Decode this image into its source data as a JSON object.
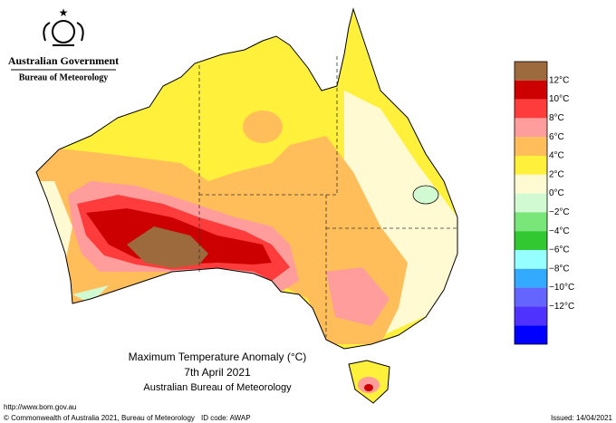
{
  "header": {
    "title": "Australian Government",
    "subtitle": "Bureau of Meteorology"
  },
  "map": {
    "title": "Maximum Temperature Anomaly (°C)",
    "date": "7th April 2021",
    "source": "Australian Bureau of Meteorology"
  },
  "legend": {
    "colors": [
      "#9c6a3c",
      "#cc0000",
      "#ff3c3c",
      "#ff9c9c",
      "#ffbe5a",
      "#fff03c",
      "#fffad2",
      "#d2fad2",
      "#78e678",
      "#32c832",
      "#96ffff",
      "#32aaff",
      "#6464ff",
      "#5032ff",
      "#0000ff"
    ],
    "labels": [
      "12°C",
      "10°C",
      "8°C",
      "6°C",
      "4°C",
      "2°C",
      "0°C",
      "−2°C",
      "−4°C",
      "−6°C",
      "−8°C",
      "−10°C",
      "−12°C"
    ]
  },
  "footer": {
    "url": "http://www.bom.gov.au",
    "copyright": "© Commonwealth of Australia 2021, Bureau of Meteorology",
    "id": "ID code: AWAP",
    "issued": "Issued: 14/04/2021"
  }
}
